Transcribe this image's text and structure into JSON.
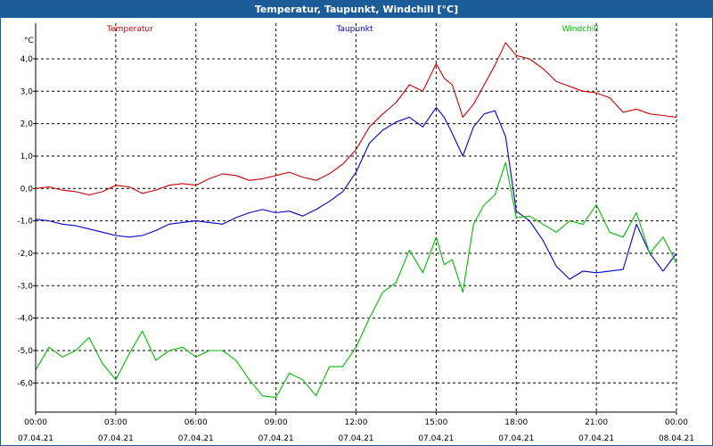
{
  "window": {
    "title": "Temperatur, Taupunkt, Windchill [°C]"
  },
  "colors": {
    "temperature": "#cc0000",
    "dewpoint": "#0000cc",
    "windchill": "#00bb00",
    "grid": "#000000",
    "titlebar": "#1c5c99"
  },
  "chart_data": {
    "type": "line",
    "title": "Temperatur, Taupunkt, Windchill [°C]",
    "ylabel": "°C",
    "xlabel": "",
    "ylim": [
      -6.9,
      5.1
    ],
    "xlim": [
      0,
      24
    ],
    "grid": true,
    "legend_position": "top",
    "yticks": [
      {
        "value": 4,
        "label": "4,0"
      },
      {
        "value": 3,
        "label": "3,0"
      },
      {
        "value": 2,
        "label": "2,0"
      },
      {
        "value": 1,
        "label": "1,0"
      },
      {
        "value": 0,
        "label": "0,0"
      },
      {
        "value": -1,
        "label": "-1,0"
      },
      {
        "value": -2,
        "label": "-2,0"
      },
      {
        "value": -3,
        "label": "-3,0"
      },
      {
        "value": -4,
        "label": "-4,0"
      },
      {
        "value": -5,
        "label": "-5,0"
      },
      {
        "value": -6,
        "label": "-6,0"
      }
    ],
    "xticks": [
      {
        "value": 0,
        "time": "00:00",
        "date": "07.04.21"
      },
      {
        "value": 3,
        "time": "03:00",
        "date": "07.04.21"
      },
      {
        "value": 6,
        "time": "06:00",
        "date": "07.04.21"
      },
      {
        "value": 9,
        "time": "09:00",
        "date": "07.04.21"
      },
      {
        "value": 12,
        "time": "12:00",
        "date": "07.04.21"
      },
      {
        "value": 15,
        "time": "15:00",
        "date": "07.04.21"
      },
      {
        "value": 18,
        "time": "18:00",
        "date": "07.04.21"
      },
      {
        "value": 21,
        "time": "21:00",
        "date": "07.04.21"
      },
      {
        "value": 24,
        "time": "00:00",
        "date": "08.04.21"
      }
    ],
    "series": [
      {
        "name": "Temperatur",
        "color": "#cc0000",
        "x": [
          0,
          0.5,
          1,
          1.5,
          2,
          2.5,
          3,
          3.5,
          4,
          4.5,
          5,
          5.5,
          6,
          6.5,
          7,
          7.5,
          8,
          8.5,
          9,
          9.5,
          10,
          10.5,
          11,
          11.5,
          12,
          12.5,
          13,
          13.5,
          14,
          14.5,
          15,
          15.3,
          15.6,
          16,
          16.4,
          16.8,
          17.2,
          17.6,
          18,
          18.5,
          19,
          19.5,
          20,
          20.5,
          21,
          21.5,
          22,
          22.5,
          23,
          23.5,
          24
        ],
        "values": [
          0.0,
          0.05,
          -0.05,
          -0.1,
          -0.2,
          -0.1,
          0.1,
          0.05,
          -0.15,
          -0.05,
          0.1,
          0.15,
          0.1,
          0.3,
          0.45,
          0.4,
          0.25,
          0.3,
          0.4,
          0.5,
          0.35,
          0.25,
          0.45,
          0.75,
          1.2,
          1.9,
          2.3,
          2.65,
          3.2,
          3.0,
          3.85,
          3.4,
          3.2,
          2.2,
          2.6,
          3.2,
          3.8,
          4.5,
          4.1,
          4.0,
          3.7,
          3.3,
          3.15,
          3.0,
          2.95,
          2.8,
          2.35,
          2.45,
          2.3,
          2.25,
          2.2
        ]
      },
      {
        "name": "Taupunkt",
        "color": "#0000cc",
        "x": [
          0,
          0.5,
          1,
          1.5,
          2,
          2.5,
          3,
          3.5,
          4,
          4.5,
          5,
          5.5,
          6,
          6.5,
          7,
          7.5,
          8,
          8.5,
          9,
          9.5,
          10,
          10.5,
          11,
          11.5,
          12,
          12.5,
          13,
          13.5,
          14,
          14.5,
          15,
          15.3,
          15.6,
          16,
          16.4,
          16.8,
          17.2,
          17.6,
          18,
          18.5,
          19,
          19.5,
          20,
          20.5,
          21,
          21.5,
          22,
          22.5,
          23,
          23.5,
          24
        ],
        "values": [
          -0.95,
          -1.0,
          -1.1,
          -1.15,
          -1.25,
          -1.35,
          -1.45,
          -1.5,
          -1.45,
          -1.3,
          -1.1,
          -1.05,
          -1.0,
          -1.05,
          -1.1,
          -0.9,
          -0.75,
          -0.65,
          -0.75,
          -0.7,
          -0.85,
          -0.65,
          -0.4,
          -0.1,
          0.5,
          1.4,
          1.8,
          2.05,
          2.2,
          1.9,
          2.5,
          2.2,
          1.7,
          1.0,
          1.9,
          2.3,
          2.4,
          1.6,
          -0.7,
          -1.0,
          -1.6,
          -2.4,
          -2.8,
          -2.55,
          -2.6,
          -2.55,
          -2.5,
          -1.1,
          -2.0,
          -2.55,
          -2.0
        ]
      },
      {
        "name": "Windchill",
        "color": "#00bb00",
        "x": [
          0,
          0.5,
          1,
          1.5,
          2,
          2.5,
          3,
          3.5,
          4,
          4.5,
          5,
          5.5,
          6,
          6.5,
          7,
          7.5,
          8,
          8.5,
          9,
          9.5,
          10,
          10.5,
          11,
          11.5,
          12,
          12.5,
          13,
          13.5,
          14,
          14.5,
          15,
          15.3,
          15.6,
          16,
          16.4,
          16.8,
          17.2,
          17.6,
          18,
          18.5,
          19,
          19.5,
          20,
          20.5,
          21,
          21.5,
          22,
          22.5,
          23,
          23.5,
          24
        ],
        "values": [
          -5.6,
          -4.9,
          -5.2,
          -5.0,
          -4.6,
          -5.4,
          -5.9,
          -5.1,
          -4.4,
          -5.3,
          -5.0,
          -4.9,
          -5.2,
          -5.0,
          -5.0,
          -5.3,
          -5.9,
          -6.4,
          -6.45,
          -5.7,
          -5.9,
          -6.4,
          -5.5,
          -5.5,
          -4.9,
          -4.0,
          -3.2,
          -2.9,
          -1.9,
          -2.6,
          -1.5,
          -2.35,
          -2.2,
          -3.2,
          -1.1,
          -0.5,
          -0.2,
          0.8,
          -0.9,
          -0.85,
          -1.1,
          -1.35,
          -1.0,
          -1.1,
          -0.5,
          -1.35,
          -1.5,
          -0.75,
          -2.0,
          -1.5,
          -2.3
        ]
      }
    ]
  }
}
